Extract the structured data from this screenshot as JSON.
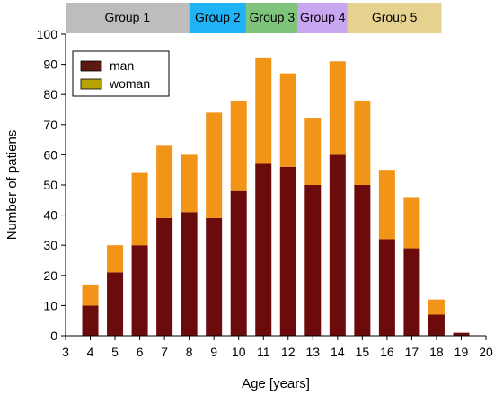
{
  "chart_data": {
    "type": "bar",
    "stacked": true,
    "title": "",
    "xlabel": "Age [years]",
    "ylabel": "Number of patiens",
    "xlim": [
      3,
      20
    ],
    "ylim": [
      0,
      100
    ],
    "x_ticks": [
      3,
      4,
      5,
      6,
      7,
      8,
      9,
      10,
      11,
      12,
      13,
      14,
      15,
      16,
      17,
      18,
      19,
      20
    ],
    "y_ticks": [
      0,
      10,
      20,
      30,
      40,
      50,
      60,
      70,
      80,
      90,
      100
    ],
    "grid": false,
    "legend_position": "top-left",
    "x": [
      4,
      5,
      6,
      7,
      8,
      9,
      10,
      11,
      12,
      13,
      14,
      15,
      16,
      17,
      18,
      19
    ],
    "series": [
      {
        "name": "man",
        "color": "#6b0b0b",
        "legend_color": "#5a1a10",
        "values": [
          10,
          21,
          30,
          39,
          41,
          39,
          48,
          57,
          56,
          50,
          60,
          50,
          32,
          29,
          7,
          1
        ]
      },
      {
        "name": "woman",
        "color": "#f29418",
        "legend_color": "#b8a400",
        "values": [
          7,
          9,
          24,
          24,
          19,
          35,
          30,
          35,
          31,
          22,
          31,
          28,
          23,
          17,
          5,
          0
        ]
      }
    ],
    "age_groups": [
      {
        "label": "Group 1",
        "color": "#bdbdbd",
        "from": 3,
        "to": 8
      },
      {
        "label": "Group 2",
        "color": "#1fb2f5",
        "from": 8,
        "to": 10.3
      },
      {
        "label": "Group 3",
        "color": "#7ec47a",
        "from": 10.3,
        "to": 12.4
      },
      {
        "label": "Group 4",
        "color": "#c9a6f0",
        "from": 12.4,
        "to": 14.4
      },
      {
        "label": "Group 5",
        "color": "#e6d28f",
        "from": 14.4,
        "to": 18.2
      }
    ]
  }
}
